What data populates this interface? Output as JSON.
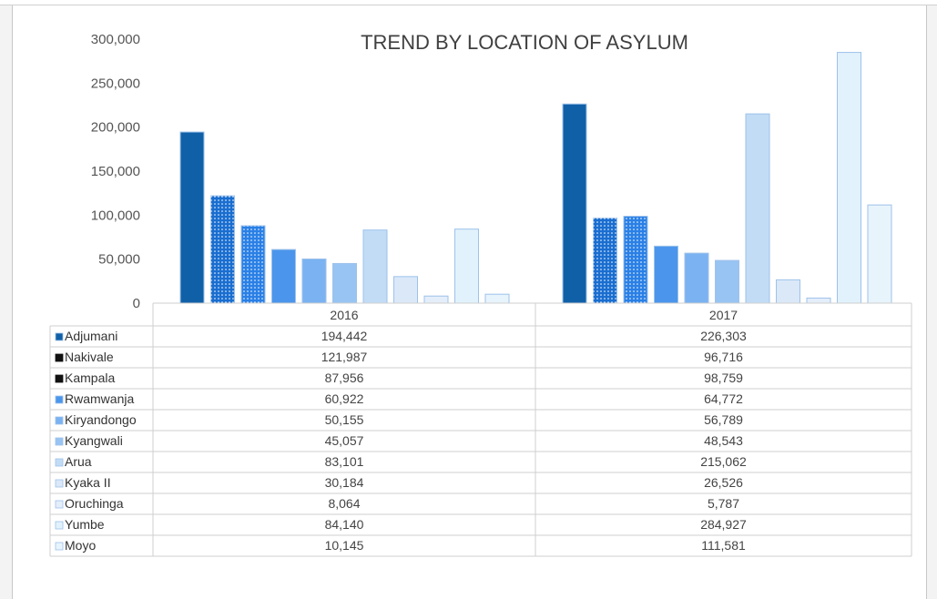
{
  "chart_data": {
    "type": "bar",
    "title": "TREND BY  LOCATION OF ASYLUM",
    "categories": [
      "2016",
      "2017"
    ],
    "ylim": [
      0,
      300000
    ],
    "yticks": [
      "0",
      "50,000",
      "100,000",
      "150,000",
      "200,000",
      "250,000",
      "300,000"
    ],
    "grid": false,
    "legend": "data-table",
    "series": [
      {
        "name": "Adjumani",
        "values": [
          194442,
          226303
        ],
        "labels": [
          "194,442",
          "226,303"
        ],
        "color": "#1060a8",
        "pattern": "solid"
      },
      {
        "name": "Nakivale",
        "values": [
          121987,
          96716
        ],
        "labels": [
          "121,987",
          "96,716"
        ],
        "color": "#1a6ed0",
        "pattern": "dots"
      },
      {
        "name": "Kampala",
        "values": [
          87956,
          98759
        ],
        "labels": [
          "87,956",
          "98,759"
        ],
        "color": "#2a80e6",
        "pattern": "dots"
      },
      {
        "name": "Rwamwanja",
        "values": [
          60922,
          64772
        ],
        "labels": [
          "60,922",
          "64,772"
        ],
        "color": "#4b96ec",
        "pattern": "solid"
      },
      {
        "name": "Kiryandongo",
        "values": [
          50155,
          56789
        ],
        "labels": [
          "50,155",
          "56,789"
        ],
        "color": "#7ab2f2",
        "pattern": "solid"
      },
      {
        "name": "Kyangwali",
        "values": [
          45057,
          48543
        ],
        "labels": [
          "45,057",
          "48,543"
        ],
        "color": "#98c4f4",
        "pattern": "solid"
      },
      {
        "name": "Arua",
        "values": [
          83101,
          215062
        ],
        "labels": [
          "83,101",
          "215,062"
        ],
        "color": "#c2dcf6",
        "pattern": "solid"
      },
      {
        "name": "Kyaka II",
        "values": [
          30184,
          26526
        ],
        "labels": [
          "30,184",
          "26,526"
        ],
        "color": "#dbe8f8",
        "pattern": "solid"
      },
      {
        "name": "Oruchinga",
        "values": [
          8064,
          5787
        ],
        "labels": [
          "8,064",
          "5,787"
        ],
        "color": "#e4eefa",
        "pattern": "solid"
      },
      {
        "name": "Yumbe",
        "values": [
          84140,
          284927
        ],
        "labels": [
          "84,140",
          "284,927"
        ],
        "color": "#e2f2fc",
        "pattern": "solid"
      },
      {
        "name": "Moyo",
        "values": [
          10145,
          111581
        ],
        "labels": [
          "10,145",
          "111,581"
        ],
        "color": "#e8f4fc",
        "pattern": "solid"
      }
    ]
  }
}
